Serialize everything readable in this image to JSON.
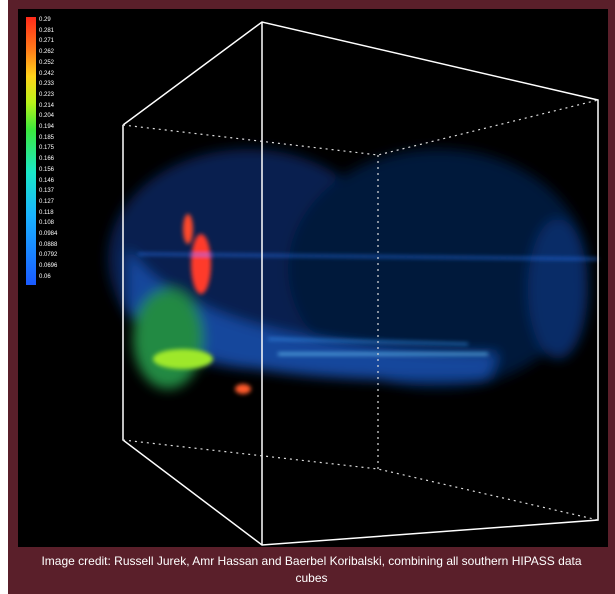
{
  "colorbar": {
    "labels": [
      "0.29",
      "0.281",
      "0.271",
      "0.262",
      "0.252",
      "0.242",
      "0.233",
      "0.223",
      "0.214",
      "0.204",
      "0.194",
      "0.185",
      "0.175",
      "0.166",
      "0.156",
      "0.146",
      "0.137",
      "0.127",
      "0.118",
      "0.108",
      "0.0984",
      "0.0888",
      "0.0792",
      "0.0696",
      "0.06"
    ]
  },
  "caption": "Image credit: Russell Jurek, Amr Hassan and Baerbel Koribalski, combining all southern HIPASS data cubes"
}
